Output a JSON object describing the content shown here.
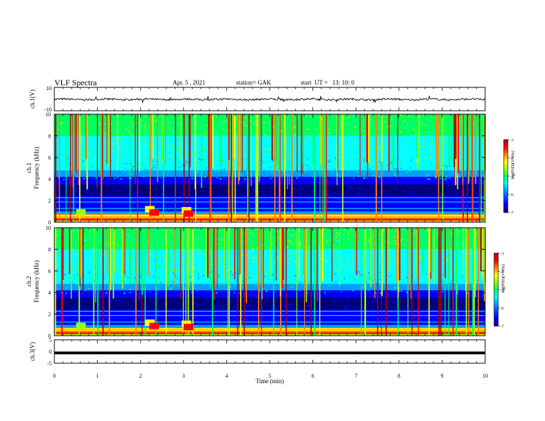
{
  "header": {
    "title": "VLF Spectra",
    "date": "Apr. 5 , 2021",
    "station": "station= GAK",
    "start": "start  UT =   13: 10: 0"
  },
  "colors": {
    "colormap": [
      "#00007a",
      "#0000ff",
      "#00a0ff",
      "#00ffff",
      "#00ff60",
      "#a0ff00",
      "#ffff00",
      "#ff8000",
      "#ff0000",
      "#b00000"
    ],
    "trace": "#000000"
  },
  "chart_data": [
    {
      "type": "line",
      "name": "ch1-waveform",
      "ylabel": "ch.1(V)",
      "ylim": [
        -10,
        10
      ],
      "yticks": [
        "10",
        "-10"
      ],
      "description_level": -0.3,
      "xlim": [
        0,
        10
      ]
    },
    {
      "type": "heatmap",
      "name": "ch1-spectrogram",
      "ylabel_top": "ch.1",
      "ylabel": "Frequency  (kHz)",
      "ylim": [
        0,
        10
      ],
      "yticks": [
        "0",
        "2",
        "4",
        "6",
        "8",
        "10"
      ],
      "xlim": [
        0,
        10
      ],
      "colorbar": {
        "label": "log(PSD)(V²/Hz)",
        "ticks": [
          "-3",
          "-4",
          "-5",
          "-6",
          "-7"
        ],
        "range": [
          -7,
          -3
        ]
      }
    },
    {
      "type": "heatmap",
      "name": "ch2-spectrogram",
      "ylabel_top": "ch.2",
      "ylabel": "Frequency  (kHz)",
      "ylim": [
        0,
        10
      ],
      "yticks": [
        "0",
        "2",
        "4",
        "6",
        "8",
        "10"
      ],
      "xlim": [
        0,
        10
      ],
      "colorbar": {
        "label": "log(PSD)(V²/Hz)",
        "ticks": [
          "-3",
          "-4",
          "-5",
          "-6",
          "-7"
        ],
        "range": [
          -7,
          -3
        ]
      }
    },
    {
      "type": "line",
      "name": "ch3-waveform",
      "ylabel": "ch.3(V)",
      "ylim": [
        -5,
        5
      ],
      "yticks": [
        "5",
        "0",
        "-5"
      ],
      "level": -0.6,
      "xlim": [
        0,
        10
      ],
      "xlabel": "Time  (min)",
      "xticks": [
        "0",
        "1",
        "2",
        "3",
        "4",
        "5",
        "6",
        "7",
        "8",
        "9",
        "10"
      ]
    }
  ]
}
